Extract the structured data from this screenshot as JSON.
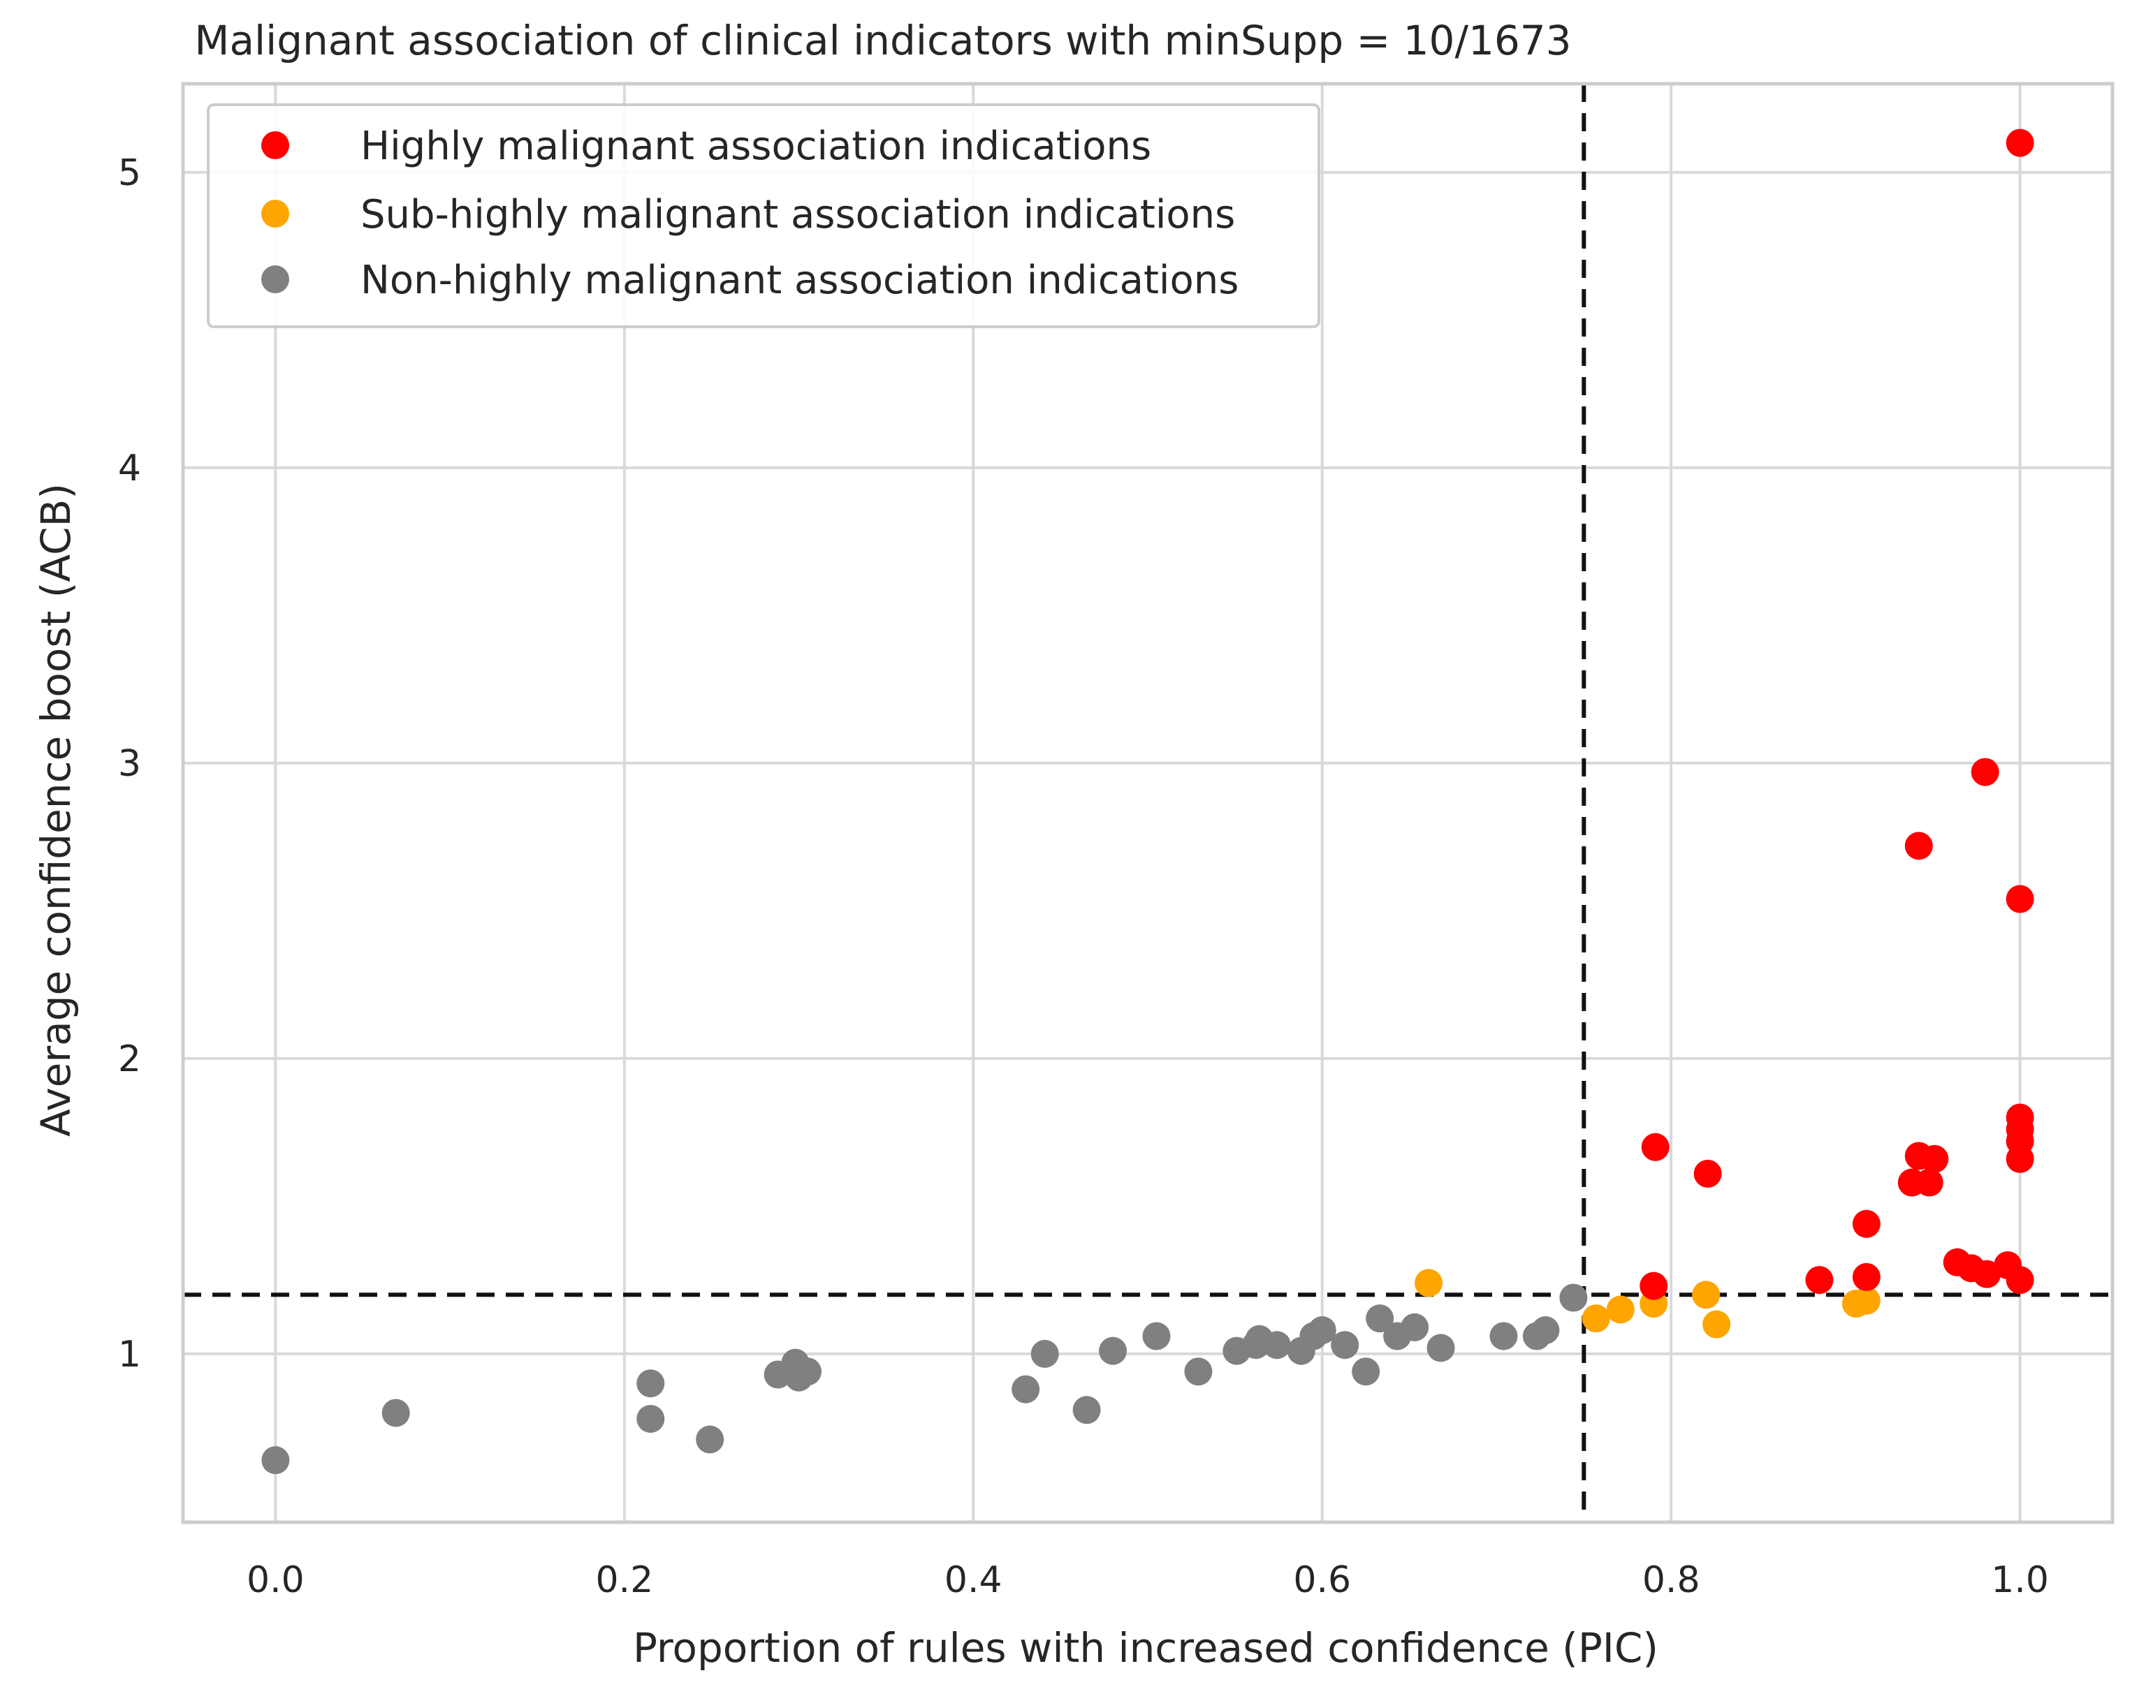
{
  "chart_data": {
    "type": "scatter",
    "title": "Malignant association of clinical indicators with minSupp = 10/1673",
    "xlabel": "Proportion of rules with increased confidence (PIC)",
    "ylabel": "Average confidence boost (ACB)",
    "xlim": [
      -0.053,
      1.053
    ],
    "ylim": [
      0.43,
      5.3
    ],
    "xticks": [
      0.0,
      0.2,
      0.4,
      0.6,
      0.8,
      1.0
    ],
    "xtick_labels": [
      "0.0",
      "0.2",
      "0.4",
      "0.6",
      "0.8",
      "1.0"
    ],
    "yticks": [
      1,
      2,
      3,
      4,
      5
    ],
    "ytick_labels": [
      "1",
      "2",
      "3",
      "4",
      "5"
    ],
    "grid": true,
    "legend_position": "top-left",
    "thresholds": {
      "x": 0.75,
      "y": 1.2
    },
    "series": [
      {
        "name": "Highly malignant association indications",
        "color": "#ff0000",
        "points": [
          [
            1.0,
            5.1
          ],
          [
            0.98,
            2.97
          ],
          [
            0.942,
            2.72
          ],
          [
            1.0,
            2.54
          ],
          [
            0.791,
            1.7
          ],
          [
            0.821,
            1.61
          ],
          [
            1.0,
            1.8
          ],
          [
            1.0,
            1.76
          ],
          [
            1.0,
            1.72
          ],
          [
            1.0,
            1.66
          ],
          [
            0.942,
            1.67
          ],
          [
            0.951,
            1.66
          ],
          [
            0.938,
            1.58
          ],
          [
            0.948,
            1.58
          ],
          [
            0.912,
            1.44
          ],
          [
            0.964,
            1.31
          ],
          [
            0.972,
            1.29
          ],
          [
            0.981,
            1.27
          ],
          [
            0.993,
            1.3
          ],
          [
            1.0,
            1.25
          ],
          [
            0.885,
            1.25
          ],
          [
            0.912,
            1.26
          ],
          [
            0.79,
            1.23
          ]
        ]
      },
      {
        "name": "Sub-highly malignant association indications",
        "color": "#ffa500",
        "points": [
          [
            0.661,
            1.24
          ],
          [
            0.757,
            1.12
          ],
          [
            0.771,
            1.15
          ],
          [
            0.79,
            1.17
          ],
          [
            0.82,
            1.2
          ],
          [
            0.826,
            1.1
          ],
          [
            0.906,
            1.17
          ],
          [
            0.912,
            1.18
          ]
        ]
      },
      {
        "name": "Non-highly malignant association indications",
        "color": "#808080",
        "points": [
          [
            0.0,
            0.64
          ],
          [
            0.069,
            0.8
          ],
          [
            0.215,
            0.9
          ],
          [
            0.215,
            0.78
          ],
          [
            0.249,
            0.71
          ],
          [
            0.288,
            0.93
          ],
          [
            0.298,
            0.97
          ],
          [
            0.3,
            0.92
          ],
          [
            0.305,
            0.94
          ],
          [
            0.43,
            0.88
          ],
          [
            0.441,
            1.0
          ],
          [
            0.465,
            0.81
          ],
          [
            0.48,
            1.01
          ],
          [
            0.505,
            1.06
          ],
          [
            0.529,
            0.94
          ],
          [
            0.551,
            1.01
          ],
          [
            0.562,
            1.03
          ],
          [
            0.564,
            1.05
          ],
          [
            0.574,
            1.03
          ],
          [
            0.588,
            1.01
          ],
          [
            0.595,
            1.06
          ],
          [
            0.6,
            1.08
          ],
          [
            0.613,
            1.03
          ],
          [
            0.625,
            0.94
          ],
          [
            0.633,
            1.12
          ],
          [
            0.643,
            1.06
          ],
          [
            0.653,
            1.09
          ],
          [
            0.668,
            1.02
          ],
          [
            0.704,
            1.06
          ],
          [
            0.723,
            1.06
          ],
          [
            0.728,
            1.08
          ],
          [
            0.744,
            1.19
          ]
        ]
      }
    ]
  }
}
